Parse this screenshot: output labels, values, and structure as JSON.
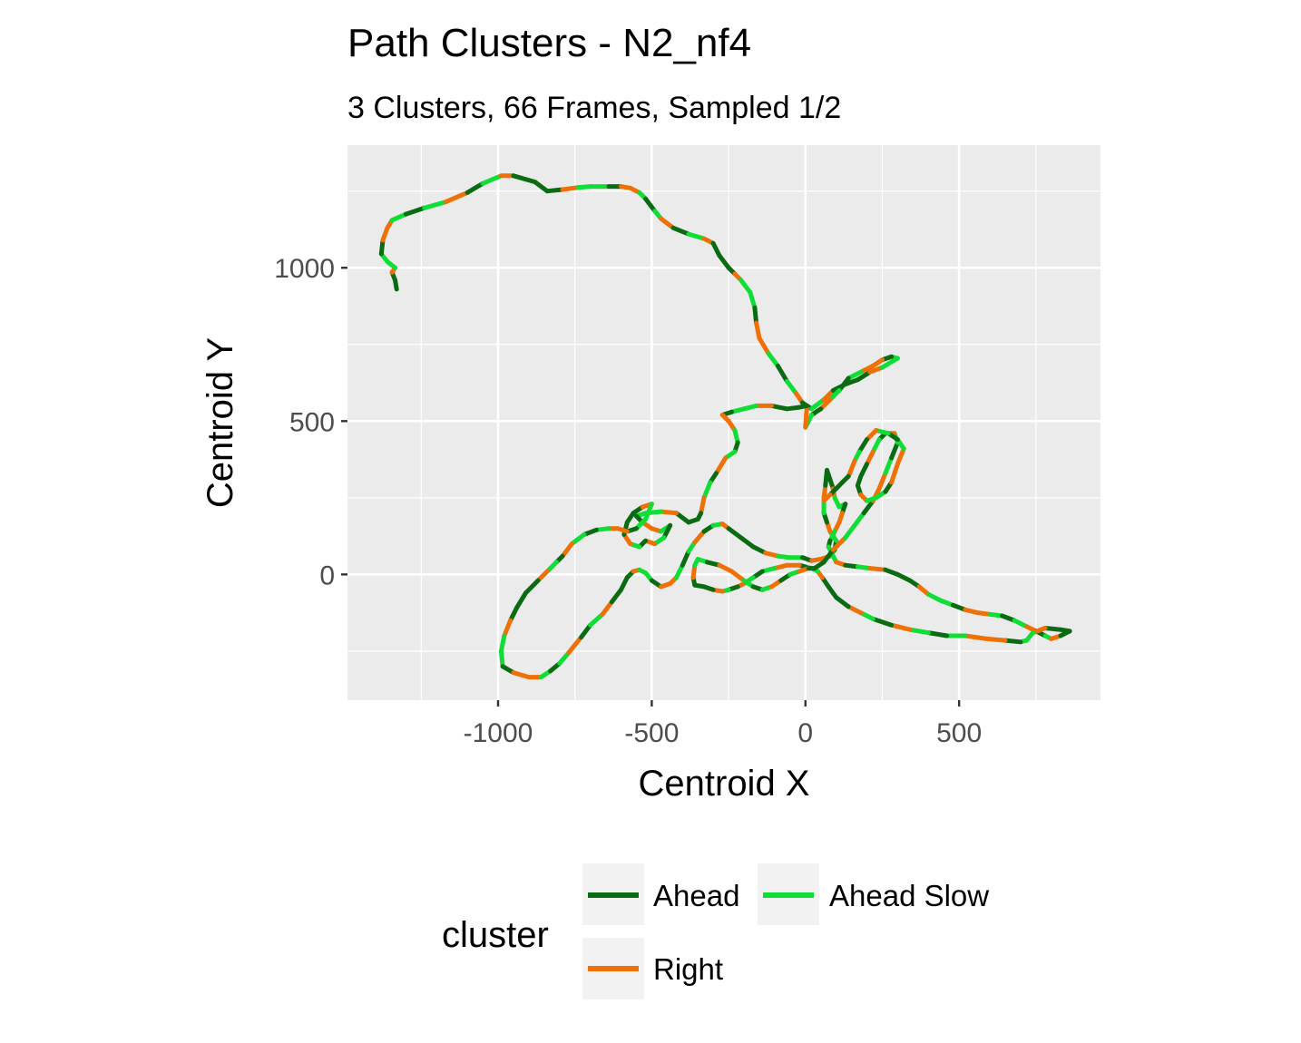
{
  "chart_data": {
    "type": "line",
    "title": "Path Clusters - N2_nf4",
    "subtitle": "3 Clusters, 66 Frames, Sampled 1/2",
    "xlabel": "Centroid X",
    "ylabel": "Centroid Y",
    "xlim": [
      -1490,
      960
    ],
    "ylim": [
      -410,
      1400
    ],
    "x_ticks": [
      -1000,
      -500,
      0,
      500
    ],
    "x_tick_labels": [
      "-1000",
      "-500",
      "0",
      "500"
    ],
    "y_ticks": [
      0,
      500,
      1000
    ],
    "y_tick_labels": [
      "0",
      "500",
      "1000"
    ],
    "grid": true,
    "legend": {
      "title": "cluster",
      "position": "bottom",
      "entries": [
        {
          "key": "ahead",
          "label": "Ahead"
        },
        {
          "key": "ahead_slow",
          "label": "Ahead Slow"
        },
        {
          "key": "right",
          "label": "Right"
        }
      ]
    },
    "colors": {
      "ahead": "#0b6b13",
      "ahead_slow": "#10dd35",
      "right": "#f07008"
    },
    "path": [
      [
        -1330,
        930
      ],
      [
        -1335,
        960
      ],
      [
        -1345,
        985
      ],
      [
        -1335,
        1000
      ],
      [
        -1360,
        1020
      ],
      [
        -1380,
        1045
      ],
      [
        -1375,
        1090
      ],
      [
        -1360,
        1130
      ],
      [
        -1345,
        1155
      ],
      [
        -1300,
        1175
      ],
      [
        -1240,
        1195
      ],
      [
        -1170,
        1215
      ],
      [
        -1100,
        1245
      ],
      [
        -1050,
        1275
      ],
      [
        -990,
        1300
      ],
      [
        -950,
        1300
      ],
      [
        -880,
        1280
      ],
      [
        -840,
        1250
      ],
      [
        -790,
        1255
      ],
      [
        -740,
        1262
      ],
      [
        -700,
        1265
      ],
      [
        -640,
        1265
      ],
      [
        -600,
        1265
      ],
      [
        -570,
        1260
      ],
      [
        -540,
        1245
      ],
      [
        -520,
        1225
      ],
      [
        -490,
        1185
      ],
      [
        -470,
        1160
      ],
      [
        -430,
        1130
      ],
      [
        -380,
        1110
      ],
      [
        -330,
        1095
      ],
      [
        -300,
        1080
      ],
      [
        -280,
        1040
      ],
      [
        -250,
        1000
      ],
      [
        -230,
        980
      ],
      [
        -210,
        960
      ],
      [
        -180,
        920
      ],
      [
        -165,
        870
      ],
      [
        -160,
        820
      ],
      [
        -150,
        770
      ],
      [
        -120,
        720
      ],
      [
        -90,
        680
      ],
      [
        -60,
        630
      ],
      [
        -30,
        590
      ],
      [
        -10,
        560
      ],
      [
        20,
        540
      ],
      [
        60,
        570
      ],
      [
        90,
        600
      ],
      [
        130,
        620
      ],
      [
        170,
        635
      ],
      [
        210,
        660
      ],
      [
        250,
        675
      ],
      [
        300,
        705
      ],
      [
        280,
        710
      ],
      [
        250,
        700
      ],
      [
        220,
        680
      ],
      [
        180,
        660
      ],
      [
        140,
        640
      ],
      [
        110,
        600
      ],
      [
        80,
        570
      ],
      [
        50,
        540
      ],
      [
        20,
        520
      ],
      [
        0,
        480
      ],
      [
        5,
        550
      ],
      [
        -20,
        545
      ],
      [
        -60,
        540
      ],
      [
        -110,
        550
      ],
      [
        -160,
        550
      ],
      [
        -200,
        540
      ],
      [
        -240,
        530
      ],
      [
        -270,
        520
      ],
      [
        -250,
        500
      ],
      [
        -230,
        470
      ],
      [
        -220,
        430
      ],
      [
        -230,
        400
      ],
      [
        -260,
        380
      ],
      [
        -290,
        330
      ],
      [
        -310,
        300
      ],
      [
        -330,
        250
      ],
      [
        -340,
        200
      ],
      [
        -350,
        180
      ],
      [
        -380,
        170
      ],
      [
        -420,
        200
      ],
      [
        -470,
        205
      ],
      [
        -520,
        200
      ],
      [
        -550,
        190
      ],
      [
        -530,
        170
      ],
      [
        -500,
        150
      ],
      [
        -470,
        140
      ],
      [
        -440,
        160
      ],
      [
        -460,
        120
      ],
      [
        -490,
        100
      ],
      [
        -520,
        110
      ],
      [
        -540,
        90
      ],
      [
        -570,
        100
      ],
      [
        -590,
        130
      ],
      [
        -580,
        170
      ],
      [
        -560,
        200
      ],
      [
        -530,
        220
      ],
      [
        -500,
        230
      ],
      [
        -520,
        180
      ],
      [
        -550,
        150
      ],
      [
        -580,
        140
      ],
      [
        -610,
        150
      ],
      [
        -640,
        150
      ],
      [
        -680,
        145
      ],
      [
        -720,
        130
      ],
      [
        -760,
        100
      ],
      [
        -790,
        60
      ],
      [
        -810,
        40
      ],
      [
        -840,
        10
      ],
      [
        -870,
        -20
      ],
      [
        -910,
        -60
      ],
      [
        -940,
        -110
      ],
      [
        -960,
        -150
      ],
      [
        -980,
        -200
      ],
      [
        -990,
        -250
      ],
      [
        -985,
        -300
      ],
      [
        -950,
        -320
      ],
      [
        -900,
        -335
      ],
      [
        -860,
        -335
      ],
      [
        -830,
        -315
      ],
      [
        -800,
        -290
      ],
      [
        -770,
        -255
      ],
      [
        -730,
        -205
      ],
      [
        -700,
        -165
      ],
      [
        -660,
        -130
      ],
      [
        -630,
        -90
      ],
      [
        -600,
        -50
      ],
      [
        -580,
        -10
      ],
      [
        -560,
        10
      ],
      [
        -540,
        15
      ],
      [
        -520,
        5
      ],
      [
        -500,
        -20
      ],
      [
        -470,
        -40
      ],
      [
        -440,
        -30
      ],
      [
        -420,
        -10
      ],
      [
        -400,
        30
      ],
      [
        -380,
        75
      ],
      [
        -360,
        105
      ],
      [
        -330,
        140
      ],
      [
        -300,
        160
      ],
      [
        -270,
        165
      ],
      [
        -250,
        150
      ],
      [
        -210,
        120
      ],
      [
        -170,
        90
      ],
      [
        -130,
        70
      ],
      [
        -90,
        60
      ],
      [
        -50,
        55
      ],
      [
        -10,
        55
      ],
      [
        20,
        45
      ],
      [
        50,
        50
      ],
      [
        80,
        60
      ],
      [
        95,
        80
      ],
      [
        100,
        110
      ],
      [
        80,
        140
      ],
      [
        70,
        170
      ],
      [
        60,
        200
      ],
      [
        60,
        250
      ],
      [
        65,
        290
      ],
      [
        70,
        340
      ],
      [
        80,
        310
      ],
      [
        90,
        280
      ],
      [
        95,
        250
      ],
      [
        110,
        220
      ],
      [
        130,
        230
      ],
      [
        120,
        200
      ],
      [
        110,
        170
      ],
      [
        95,
        140
      ],
      [
        80,
        110
      ],
      [
        75,
        90
      ],
      [
        100,
        40
      ],
      [
        130,
        30
      ],
      [
        170,
        25
      ],
      [
        210,
        20
      ],
      [
        260,
        15
      ],
      [
        300,
        0
      ],
      [
        340,
        -20
      ],
      [
        370,
        -40
      ],
      [
        400,
        -65
      ],
      [
        440,
        -85
      ],
      [
        480,
        -100
      ],
      [
        520,
        -115
      ],
      [
        560,
        -125
      ],
      [
        600,
        -130
      ],
      [
        640,
        -135
      ],
      [
        680,
        -150
      ],
      [
        720,
        -170
      ],
      [
        750,
        -185
      ],
      [
        780,
        -200
      ],
      [
        800,
        -210
      ],
      [
        830,
        -200
      ],
      [
        860,
        -185
      ],
      [
        830,
        -180
      ],
      [
        780,
        -175
      ],
      [
        740,
        -190
      ],
      [
        720,
        -215
      ],
      [
        700,
        -220
      ],
      [
        650,
        -215
      ],
      [
        590,
        -210
      ],
      [
        520,
        -200
      ],
      [
        460,
        -200
      ],
      [
        400,
        -190
      ],
      [
        340,
        -180
      ],
      [
        280,
        -165
      ],
      [
        220,
        -145
      ],
      [
        180,
        -125
      ],
      [
        140,
        -105
      ],
      [
        100,
        -75
      ],
      [
        75,
        -40
      ],
      [
        55,
        -10
      ],
      [
        40,
        10
      ],
      [
        20,
        20
      ],
      [
        0,
        25
      ],
      [
        -20,
        30
      ],
      [
        -60,
        30
      ],
      [
        -100,
        20
      ],
      [
        -140,
        10
      ],
      [
        -170,
        -10
      ],
      [
        -200,
        -30
      ],
      [
        -220,
        -40
      ],
      [
        -250,
        -50
      ],
      [
        -270,
        -55
      ],
      [
        -300,
        -50
      ],
      [
        -330,
        -40
      ],
      [
        -360,
        -35
      ],
      [
        -365,
        -10
      ],
      [
        -360,
        30
      ],
      [
        -350,
        50
      ],
      [
        -320,
        40
      ],
      [
        -280,
        30
      ],
      [
        -240,
        10
      ],
      [
        -200,
        -20
      ],
      [
        -170,
        -40
      ],
      [
        -140,
        -50
      ],
      [
        -110,
        -40
      ],
      [
        -80,
        -20
      ],
      [
        -50,
        0
      ],
      [
        -20,
        10
      ],
      [
        10,
        20
      ],
      [
        30,
        20
      ],
      [
        60,
        40
      ],
      [
        90,
        80
      ],
      [
        130,
        120
      ],
      [
        160,
        160
      ],
      [
        190,
        200
      ],
      [
        220,
        240
      ],
      [
        240,
        280
      ],
      [
        260,
        330
      ],
      [
        280,
        380
      ],
      [
        300,
        430
      ],
      [
        290,
        460
      ],
      [
        260,
        460
      ],
      [
        240,
        440
      ],
      [
        220,
        400
      ],
      [
        200,
        360
      ],
      [
        180,
        320
      ],
      [
        170,
        290
      ],
      [
        180,
        260
      ],
      [
        200,
        240
      ],
      [
        230,
        250
      ],
      [
        260,
        270
      ],
      [
        280,
        300
      ],
      [
        300,
        360
      ],
      [
        320,
        410
      ],
      [
        300,
        440
      ],
      [
        270,
        460
      ],
      [
        230,
        470
      ],
      [
        200,
        440
      ],
      [
        175,
        400
      ],
      [
        160,
        370
      ],
      [
        140,
        320
      ],
      [
        120,
        300
      ],
      [
        100,
        280
      ],
      [
        80,
        260
      ],
      [
        60,
        240
      ]
    ]
  }
}
